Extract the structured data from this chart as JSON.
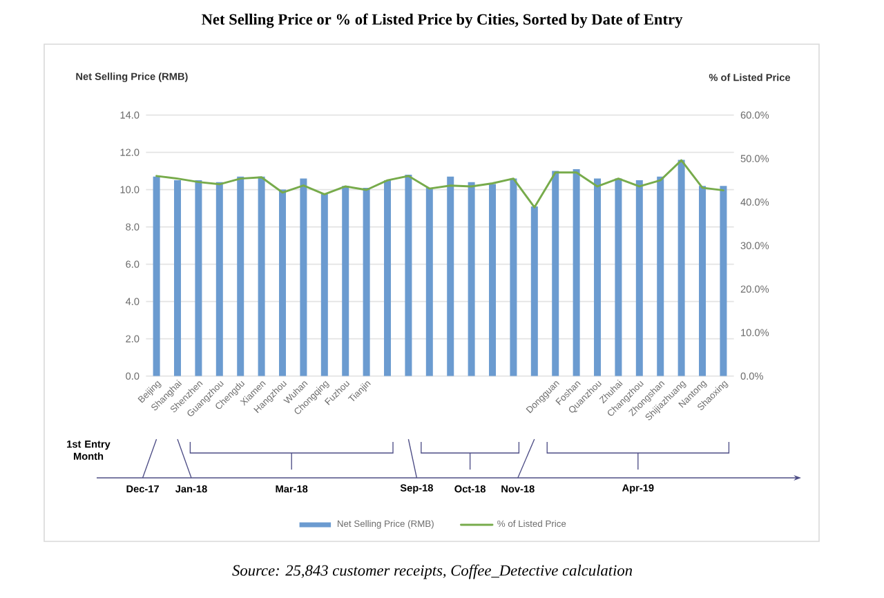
{
  "chart_data": {
    "type": "bar",
    "title": "Net Selling Price or % of Listed Price by Cities, Sorted by Date of Entry",
    "ylabel": "Net Selling Price (RMB)",
    "y2label": "% of Listed Price",
    "categories": [
      "Beijing",
      "Shanghai",
      "Shenzhen",
      "Guangzhou",
      "Chengdu",
      "Xiamen",
      "Hangzhou",
      "Wuhan",
      "Chongqing",
      "Fuzhou",
      "Tianjin",
      null,
      null,
      null,
      null,
      null,
      null,
      null,
      null,
      "Dongguan",
      "Foshan",
      "Quanzhou",
      "Zhuhai",
      "Changzhou",
      "Zhongshan",
      "Shijiazhuang",
      "Nantong",
      "Shaoxing"
    ],
    "series": [
      {
        "name": "Net Selling Price (RMB)",
        "color": "#6b9bd0",
        "values": [
          10.7,
          10.5,
          10.5,
          10.4,
          10.7,
          10.7,
          10.0,
          10.6,
          9.8,
          10.2,
          10.1,
          10.5,
          10.8,
          10.1,
          10.7,
          10.4,
          10.3,
          10.6,
          9.1,
          11.0,
          11.1,
          10.6,
          10.6,
          10.5,
          10.7,
          11.6,
          10.2,
          10.2
        ]
      },
      {
        "name": "% of Listed Price",
        "type": "line",
        "axis": "y2",
        "color": "#77ab4b",
        "values": [
          46.0,
          45.4,
          44.6,
          44.1,
          45.4,
          45.7,
          42.2,
          43.8,
          41.8,
          43.6,
          42.8,
          45.0,
          46.0,
          43.1,
          43.8,
          43.6,
          44.3,
          45.4,
          38.8,
          46.8,
          46.8,
          43.6,
          45.4,
          43.6,
          45.0,
          49.6,
          43.3,
          42.7
        ]
      }
    ],
    "ylim": [
      0,
      14
    ],
    "yticks": [
      {
        "value": 0,
        "label": "0.0"
      },
      {
        "value": 2,
        "label": "2.0"
      },
      {
        "value": 4,
        "label": "4.0"
      },
      {
        "value": 6,
        "label": "6.0"
      },
      {
        "value": 8,
        "label": "8.0"
      },
      {
        "value": 10,
        "label": "10.0"
      },
      {
        "value": 12,
        "label": "12.0"
      },
      {
        "value": 14,
        "label": "14.0"
      }
    ],
    "y2lim": [
      0,
      60
    ],
    "y2ticks": [
      {
        "value": 0,
        "label": "0.0%"
      },
      {
        "value": 10,
        "label": "10.0%"
      },
      {
        "value": 20,
        "label": "20.0%"
      },
      {
        "value": 30,
        "label": "30.0%"
      },
      {
        "value": 40,
        "label": "40.0%"
      },
      {
        "value": 50,
        "label": "50.0%"
      },
      {
        "value": 60,
        "label": "60.0%"
      }
    ],
    "grid": "y",
    "legend": "bottom",
    "annotations": [
      "1st Entry Month",
      "Dec-17",
      "Jan-18",
      "Mar-18",
      "Sep-18",
      "Oct-18",
      "Nov-18",
      "Apr-19",
      "Source: 25,843 customer receipts, Coffee_Detective calculation"
    ]
  }
}
